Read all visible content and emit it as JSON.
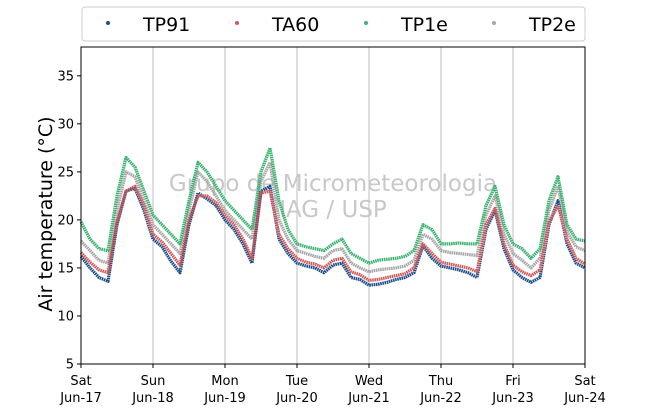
{
  "chart_data": {
    "type": "line",
    "title": "",
    "xlabel": "",
    "ylabel": "Air temperature (°C)",
    "ylim": [
      5,
      38
    ],
    "yticks": [
      5,
      10,
      15,
      20,
      25,
      30,
      35
    ],
    "x_range": [
      "2017-06-17 00:00",
      "2017-06-24 00:00"
    ],
    "x_ticks": [
      {
        "day": "Sat",
        "date": "Jun-17"
      },
      {
        "day": "Sun",
        "date": "Jun-18"
      },
      {
        "day": "Mon",
        "date": "Jun-19"
      },
      {
        "day": "Tue",
        "date": "Jun-20"
      },
      {
        "day": "Wed",
        "date": "Jun-21"
      },
      {
        "day": "Thu",
        "date": "Jun-22"
      },
      {
        "day": "Fri",
        "date": "Jun-23"
      },
      {
        "day": "Sat",
        "date": "Jun-24"
      }
    ],
    "grid": "vertical-daily",
    "legend_position": "top",
    "watermark": [
      "Grupo de Micrometeorologia",
      "IAG / USP"
    ],
    "x_hours": [
      0,
      3,
      6,
      9,
      12,
      15,
      18,
      21,
      24,
      27,
      30,
      33,
      36,
      39,
      42,
      45,
      48,
      51,
      54,
      57,
      60,
      63,
      66,
      69,
      72,
      75,
      78,
      81,
      84,
      87,
      90,
      93,
      96,
      99,
      102,
      105,
      108,
      111,
      114,
      117,
      120,
      123,
      126,
      129,
      132,
      135,
      138,
      141,
      144,
      147,
      150,
      153,
      156,
      159,
      162,
      165,
      168
    ],
    "series": [
      {
        "name": "TP91",
        "color": "#1f4e8c",
        "values": [
          16.2,
          15.0,
          14.0,
          13.6,
          19.5,
          23.0,
          23.3,
          21.0,
          18.0,
          17.2,
          15.7,
          14.5,
          19.5,
          22.8,
          22.2,
          21.5,
          20.0,
          19.0,
          17.5,
          15.5,
          23.0,
          23.5,
          18.0,
          16.5,
          15.5,
          15.2,
          15.0,
          14.5,
          15.3,
          15.5,
          14.0,
          13.8,
          13.2,
          13.3,
          13.5,
          13.8,
          14.0,
          14.5,
          17.3,
          16.0,
          15.2,
          15.0,
          14.8,
          14.5,
          14.0,
          19.0,
          21.0,
          17.0,
          14.8,
          14.0,
          13.5,
          14.0,
          19.5,
          22.0,
          17.5,
          15.5,
          15.0
        ]
      },
      {
        "name": "TA60",
        "color": "#d05a5a",
        "values": [
          16.6,
          15.6,
          14.8,
          14.5,
          19.8,
          23.0,
          23.5,
          21.5,
          18.5,
          17.7,
          16.5,
          15.3,
          20.0,
          22.5,
          22.5,
          21.8,
          20.5,
          19.5,
          18.0,
          16.0,
          22.8,
          23.0,
          18.5,
          17.0,
          16.0,
          15.6,
          15.4,
          15.0,
          15.8,
          16.0,
          14.6,
          14.3,
          13.7,
          13.8,
          14.0,
          14.2,
          14.4,
          15.0,
          17.5,
          16.5,
          15.6,
          15.4,
          15.2,
          15.0,
          14.6,
          19.5,
          21.2,
          17.5,
          15.3,
          14.6,
          14.2,
          14.8,
          19.8,
          21.5,
          18.0,
          16.0,
          15.4
        ]
      },
      {
        "name": "TP1e",
        "color": "#3cb371",
        "values": [
          19.8,
          18.0,
          17.0,
          16.8,
          22.5,
          26.5,
          25.5,
          23.0,
          20.5,
          19.5,
          18.5,
          17.5,
          22.0,
          26.0,
          25.0,
          23.5,
          22.0,
          21.0,
          20.0,
          19.0,
          25.0,
          27.5,
          22.0,
          19.0,
          17.5,
          17.2,
          17.0,
          16.8,
          17.5,
          18.0,
          16.5,
          16.0,
          15.5,
          15.8,
          15.9,
          16.0,
          16.2,
          16.8,
          19.5,
          19.0,
          17.5,
          17.5,
          17.6,
          17.5,
          17.5,
          21.5,
          23.5,
          19.5,
          17.5,
          17.0,
          16.0,
          17.0,
          22.0,
          24.5,
          19.5,
          18.0,
          17.8
        ]
      },
      {
        "name": "TP2e",
        "color": "#a8a8a8",
        "values": [
          17.8,
          16.8,
          15.8,
          15.5,
          21.0,
          25.0,
          24.5,
          22.0,
          19.5,
          18.5,
          17.5,
          16.5,
          21.0,
          25.0,
          24.0,
          22.5,
          21.0,
          20.0,
          19.0,
          18.0,
          24.0,
          26.0,
          20.0,
          18.0,
          16.8,
          16.5,
          16.2,
          16.0,
          16.8,
          17.0,
          15.5,
          15.0,
          14.6,
          14.8,
          14.9,
          15.0,
          15.2,
          15.8,
          18.5,
          18.0,
          16.8,
          16.6,
          16.5,
          16.4,
          16.3,
          20.5,
          22.5,
          18.5,
          16.5,
          15.8,
          15.0,
          16.0,
          21.0,
          23.5,
          18.8,
          17.2,
          16.8
        ]
      }
    ]
  }
}
